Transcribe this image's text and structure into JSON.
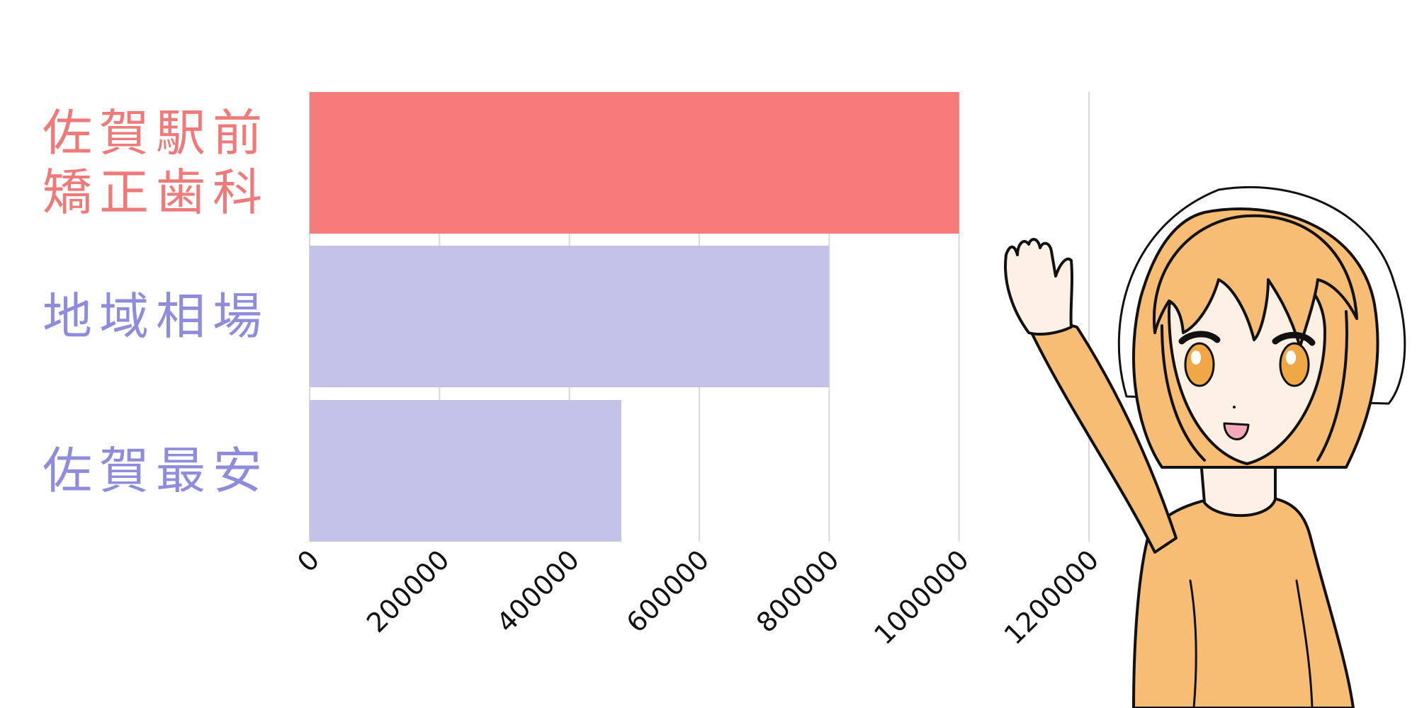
{
  "chart_data": {
    "type": "bar",
    "orientation": "horizontal",
    "categories": [
      [
        "佐賀駅前",
        "矯正歯科"
      ],
      [
        "地域相場"
      ],
      [
        "佐賀最安"
      ]
    ],
    "values": [
      1000000,
      800000,
      480000
    ],
    "xlim": [
      0,
      1200000
    ],
    "xticks": [
      "0",
      "200000",
      "400000",
      "600000",
      "800000",
      "1000000",
      "1200000"
    ],
    "grid": true,
    "title": "",
    "xlabel": "",
    "ylabel": ""
  },
  "colors": {
    "highlight_bar": "#f77a7a",
    "highlight_label": "#ef7a7a",
    "other_bar": "#c3c2e8",
    "other_label": "#8f8ddb",
    "grid": "#d9d9d9",
    "hair": "#f8bd75",
    "skin": "#fdf1e6",
    "eye": "#f0a746",
    "outline": "#111111"
  },
  "illustration": {
    "subject": "waving-girl-icon"
  }
}
